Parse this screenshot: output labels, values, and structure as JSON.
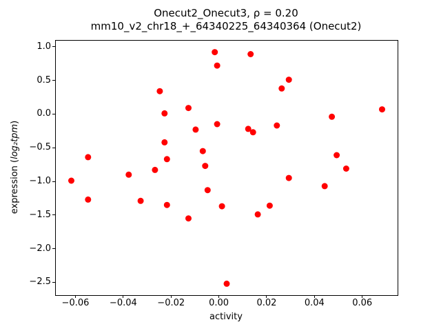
{
  "figure": {
    "title_line1": "Onecut2_Onecut3, ρ = 0.20",
    "title_line2": "mm10_v2_chr18_+_64340225_64340364 (Onecut2)",
    "xlabel": "activity",
    "ylabel_prefix": "expression (",
    "ylabel_math": "log₂tpm",
    "ylabel_suffix": ")"
  },
  "chart_data": {
    "type": "scatter",
    "title": "Onecut2_Onecut3, ρ = 0.20",
    "subtitle": "mm10_v2_chr18_+_64340225_64340364 (Onecut2)",
    "xlabel": "activity",
    "ylabel": "expression (log2 tpm)",
    "marker_color": "#ff0000",
    "marker_radius": 4.5,
    "grid": false,
    "legend": null,
    "xlim": [
      -0.0685,
      0.0745
    ],
    "ylim": [
      -2.68,
      1.1
    ],
    "xticks": [
      -0.06,
      -0.04,
      -0.02,
      0.0,
      0.02,
      0.04,
      0.06
    ],
    "yticks": [
      1.0,
      0.5,
      0.0,
      -0.5,
      -1.0,
      -1.5,
      -2.0,
      -2.5
    ],
    "points": [
      [
        -0.062,
        -0.98
      ],
      [
        -0.055,
        -0.63
      ],
      [
        -0.055,
        -1.26
      ],
      [
        -0.038,
        -0.89
      ],
      [
        -0.033,
        -1.28
      ],
      [
        -0.027,
        -0.82
      ],
      [
        -0.025,
        0.35
      ],
      [
        -0.023,
        0.02
      ],
      [
        -0.023,
        -0.41
      ],
      [
        -0.022,
        -0.66
      ],
      [
        -0.022,
        -1.34
      ],
      [
        -0.013,
        0.1
      ],
      [
        -0.013,
        -1.54
      ],
      [
        -0.01,
        -0.22
      ],
      [
        -0.007,
        -0.54
      ],
      [
        -0.006,
        -0.76
      ],
      [
        -0.005,
        -1.12
      ],
      [
        -0.002,
        0.93
      ],
      [
        -0.001,
        0.73
      ],
      [
        -0.001,
        -0.14
      ],
      [
        0.001,
        -1.36
      ],
      [
        0.003,
        -2.51
      ],
      [
        0.012,
        -0.21
      ],
      [
        0.013,
        0.9
      ],
      [
        0.014,
        -0.26
      ],
      [
        0.016,
        -1.48
      ],
      [
        0.021,
        -1.35
      ],
      [
        0.024,
        -0.16
      ],
      [
        0.026,
        0.39
      ],
      [
        0.029,
        0.52
      ],
      [
        0.029,
        -0.94
      ],
      [
        0.044,
        -1.06
      ],
      [
        0.047,
        -0.03
      ],
      [
        0.049,
        -0.6
      ],
      [
        0.053,
        -0.8
      ],
      [
        0.068,
        0.08
      ]
    ]
  }
}
